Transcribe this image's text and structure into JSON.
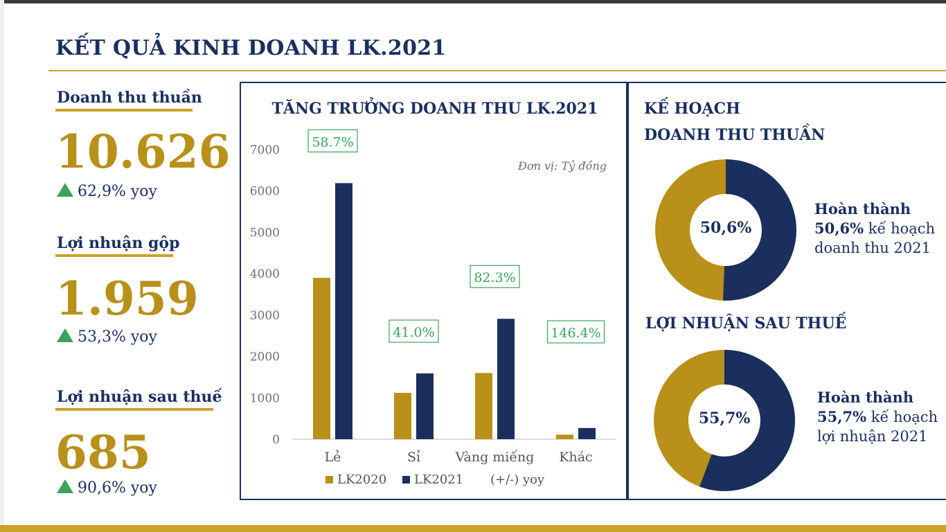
{
  "page": {
    "title": "KẾT QUẢ KINH DOANH LK.2021"
  },
  "metrics": [
    {
      "label": "Doanh thu thuần",
      "value": "10.626",
      "yoy": "62,9% yoy"
    },
    {
      "label": "Lợi nhuận gộp",
      "value": "1.959",
      "yoy": "53,3% yoy"
    },
    {
      "label": "Lợi nhuận sau thuế",
      "value": "685",
      "yoy": "90,6% yoy"
    }
  ],
  "colors": {
    "gold": "#b8901a",
    "navy": "#1a2f5e",
    "growth_green": "#3aa35a"
  },
  "chart_data": [
    {
      "type": "bar",
      "title": "TĂNG TRƯỞNG DOANH THU LK.2021",
      "unit_note": "Đơn vị: Tỷ đồng",
      "categories": [
        "Lẻ",
        "Sỉ",
        "Vàng miếng",
        "Khác"
      ],
      "series": [
        {
          "name": "LK2020",
          "values": [
            3900,
            1120,
            1600,
            110
          ],
          "color": "#b8901a"
        },
        {
          "name": "LK2021",
          "values": [
            6190,
            1590,
            2910,
            270
          ],
          "color": "#1a2f5e"
        }
      ],
      "growth_labels": [
        "58.7%",
        "41.0%",
        "82.3%",
        "146.4%"
      ],
      "growth_legend": "(+/-) yoy",
      "ylim": [
        0,
        7000
      ],
      "yticks": [
        0,
        1000,
        2000,
        3000,
        4000,
        5000,
        6000,
        7000
      ],
      "legend_position": "bottom"
    },
    {
      "type": "pie",
      "title_lines": [
        "KẾ HOẠCH",
        "DOANH THU THUẦN"
      ],
      "center_label": "50,6%",
      "values": [
        50.6,
        49.4
      ],
      "colors": [
        "#1a2f5e",
        "#b8901a"
      ],
      "text_bold": "Hoàn thành",
      "text_pct": "50,6%",
      "text_rest1": "kế hoạch",
      "text_rest2": "doanh thu 2021"
    },
    {
      "type": "pie",
      "title_lines": [
        "LỢI NHUẬN SAU THUẾ"
      ],
      "center_label": "55,7%",
      "values": [
        55.7,
        44.3
      ],
      "colors": [
        "#1a2f5e",
        "#b8901a"
      ],
      "text_bold": "Hoàn thành",
      "text_pct": "55,7%",
      "text_rest1": "kế hoạch",
      "text_rest2": "lợi nhuận 2021"
    }
  ]
}
